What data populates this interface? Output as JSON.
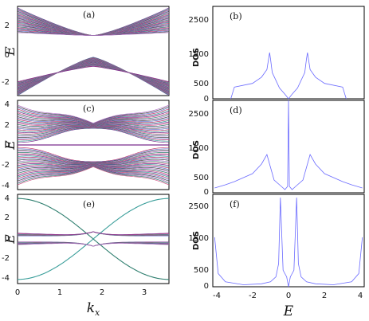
{
  "chart_data": [
    {
      "type": "line",
      "panel": "(a)",
      "ylabel": "E",
      "xlim": [
        0,
        3.6
      ],
      "ylim": [
        -2.9,
        2.9
      ],
      "yticks": [
        "2",
        "0",
        "-2"
      ],
      "band_model": {
        "crossing_kx": 1.8,
        "crossing_E": 1.0,
        "n_bands": 30,
        "gap": "open near kx=1.8"
      }
    },
    {
      "type": "line",
      "panel": "(b)",
      "ylabel": "DOS",
      "xlim": [
        -4.2,
        4.2
      ],
      "ylim": [
        0,
        3000
      ],
      "yticks": [
        "2500",
        "1500",
        "500",
        "0"
      ],
      "x": [
        -3.2,
        -3.0,
        -2.0,
        -1.5,
        -1.2,
        -1.05,
        -1.0,
        -0.9,
        -0.5,
        -0.2,
        0.0,
        0.2,
        0.5,
        0.9,
        1.0,
        1.05,
        1.2,
        1.5,
        2.0,
        3.0,
        3.2
      ],
      "y": [
        0,
        380,
        500,
        700,
        950,
        1500,
        1300,
        850,
        350,
        150,
        0,
        150,
        350,
        850,
        1300,
        1500,
        950,
        700,
        500,
        380,
        0
      ]
    },
    {
      "type": "line",
      "panel": "(c)",
      "ylabel": "E",
      "xlim": [
        0,
        3.6
      ],
      "ylim": [
        -4.3,
        4.3
      ],
      "yticks": [
        "4",
        "2",
        "0",
        "-2",
        "-4"
      ],
      "band_model": {
        "crossing_kx": 1.8,
        "flat_band_E": 0.0,
        "n_bands": 30
      }
    },
    {
      "type": "line",
      "panel": "(d)",
      "ylabel": "DOS",
      "xlim": [
        -4.2,
        4.2
      ],
      "ylim": [
        0,
        2900
      ],
      "yticks": [
        "2500",
        "1500",
        "500",
        "0"
      ],
      "x": [
        -4.1,
        -3.5,
        -3.0,
        -2.0,
        -1.5,
        -1.2,
        -1.0,
        -0.8,
        -0.4,
        -0.2,
        -0.05,
        0.0,
        0.05,
        0.2,
        0.4,
        0.8,
        1.0,
        1.2,
        1.5,
        2.0,
        3.0,
        3.5,
        4.1
      ],
      "y": [
        150,
        250,
        350,
        600,
        900,
        1200,
        800,
        400,
        200,
        100,
        200,
        2900,
        200,
        100,
        200,
        400,
        800,
        1200,
        900,
        600,
        350,
        250,
        150
      ]
    },
    {
      "type": "line",
      "panel": "(e)",
      "ylabel": "E",
      "xlabel": "k_x",
      "xlim": [
        0,
        3.6
      ],
      "ylim": [
        -4.3,
        4.3
      ],
      "yticks": [
        "4",
        "2",
        "0",
        "-2",
        "-4"
      ],
      "xticks": [
        "0",
        "1",
        "2",
        "3"
      ],
      "band_model": {
        "crossing_kx": 1.8,
        "outer_band_max": 3.9,
        "flat_bands": [
          -0.3,
          0.3
        ]
      }
    },
    {
      "type": "line",
      "panel": "(f)",
      "ylabel": "DOS",
      "xlabel": "E",
      "xlim": [
        -4.2,
        4.2
      ],
      "ylim": [
        0,
        2800
      ],
      "yticks": [
        "2500",
        "1500",
        "500",
        "0"
      ],
      "xticks": [
        "-4",
        "-2",
        "0",
        "2",
        "4"
      ],
      "x": [
        -4.1,
        -3.9,
        -3.5,
        -2.5,
        -1.5,
        -1.0,
        -0.7,
        -0.55,
        -0.45,
        -0.3,
        -0.1,
        0.0,
        0.1,
        0.3,
        0.45,
        0.55,
        0.7,
        1.0,
        1.5,
        2.5,
        3.5,
        3.9,
        4.1
      ],
      "y": [
        1500,
        400,
        150,
        60,
        90,
        150,
        300,
        700,
        2700,
        500,
        300,
        0,
        300,
        500,
        2700,
        700,
        300,
        150,
        90,
        60,
        150,
        400,
        1500
      ]
    }
  ]
}
